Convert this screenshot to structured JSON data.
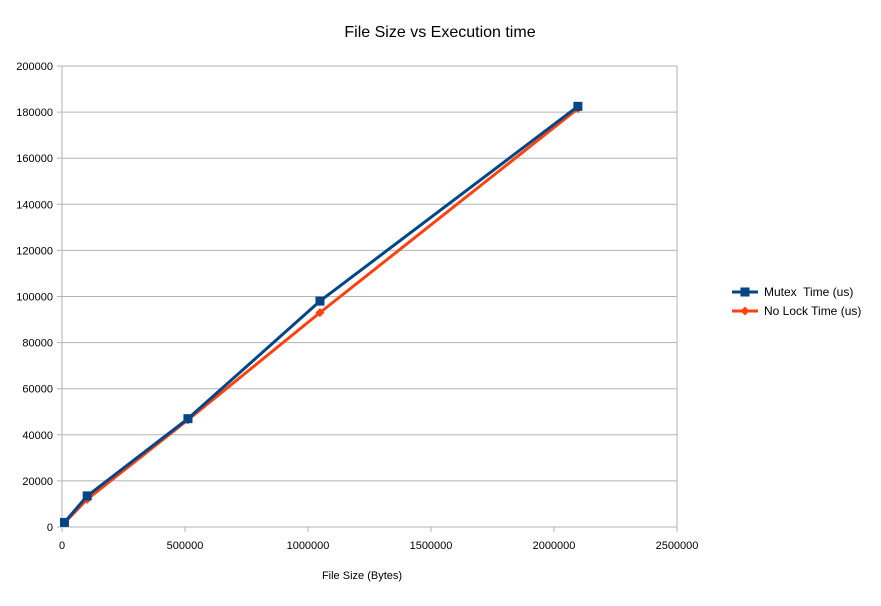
{
  "chart_data": {
    "type": "line",
    "title": "File Size vs Execution time",
    "xlabel": "File Size (Bytes)",
    "ylabel": "",
    "xlim": [
      0,
      2500000
    ],
    "ylim": [
      0,
      200000
    ],
    "x_ticks": [
      "0",
      "500000",
      "1000000",
      "1500000",
      "2000000",
      "2500000"
    ],
    "y_ticks": [
      "0",
      "20000",
      "40000",
      "60000",
      "80000",
      "100000",
      "120000",
      "140000",
      "160000",
      "180000",
      "200000"
    ],
    "grid": "horizontal",
    "legend_position": "right",
    "series": [
      {
        "name": "Mutex  Time (us)",
        "color": "#004586",
        "marker": "square",
        "points": [
          {
            "x": 10000,
            "y": 2000
          },
          {
            "x": 102400,
            "y": 13500
          },
          {
            "x": 512000,
            "y": 47000
          },
          {
            "x": 1048576,
            "y": 98000
          },
          {
            "x": 2097152,
            "y": 182500
          }
        ]
      },
      {
        "name": "No Lock Time (us)",
        "color": "#ff420e",
        "marker": "diamond",
        "points": [
          {
            "x": 10000,
            "y": 1800
          },
          {
            "x": 102400,
            "y": 12000
          },
          {
            "x": 512000,
            "y": 46500
          },
          {
            "x": 1048576,
            "y": 93000
          },
          {
            "x": 2097152,
            "y": 181500
          }
        ]
      }
    ]
  }
}
